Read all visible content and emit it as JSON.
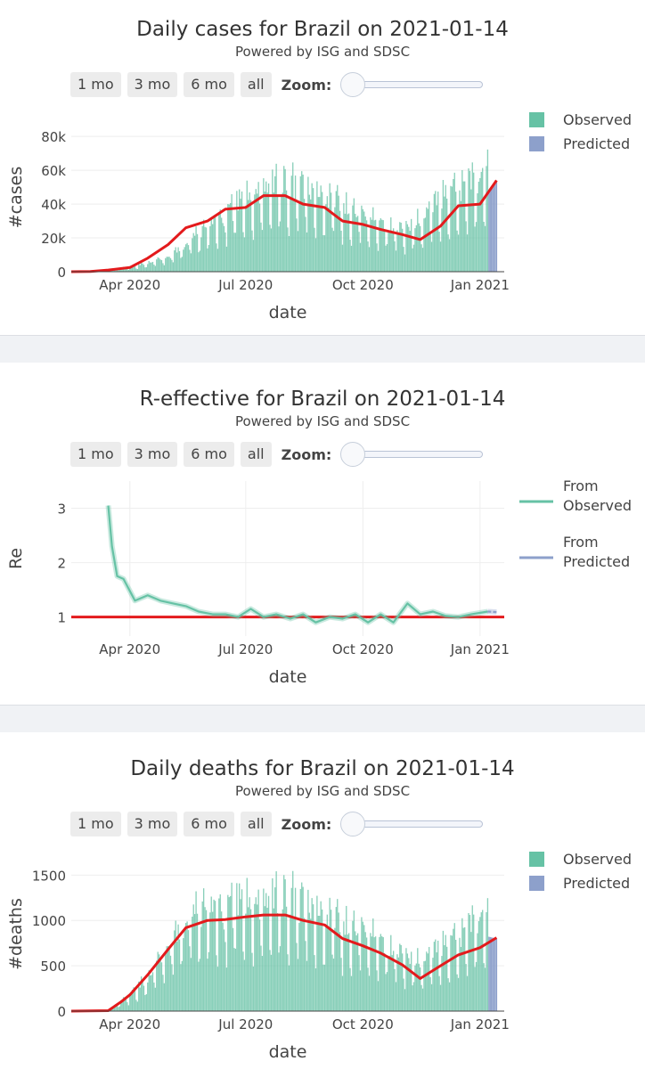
{
  "controls": {
    "buttons": [
      "1 mo",
      "3 mo",
      "6 mo",
      "all"
    ],
    "zoom_label": "Zoom:"
  },
  "colors": {
    "observed": "#66c2a5",
    "predicted": "#8da0cb",
    "trend": "#e31a1c"
  },
  "chart_data": [
    {
      "type": "bar",
      "title": "Daily cases for Brazil on 2021-01-14",
      "subtitle": "Powered by ISG and SDSC",
      "xlabel": "date",
      "ylabel": "#cases",
      "xlim": [
        "2020-02-15",
        "2021-01-20"
      ],
      "ylim": [
        0,
        88000
      ],
      "yticks": [
        0,
        20000,
        40000,
        60000,
        80000
      ],
      "ytick_labels": [
        "0",
        "20k",
        "40k",
        "60k",
        "80k"
      ],
      "xticks": [
        "2020-04-01",
        "2020-07-01",
        "2020-10-01",
        "2021-01-01"
      ],
      "xtick_labels": [
        "Apr 2020",
        "Jul 2020",
        "Oct 2020",
        "Jan 2021"
      ],
      "legend": {
        "position": "top-right",
        "entries": [
          "Observed",
          "Predicted"
        ]
      },
      "observed_bars": {
        "name": "Observed",
        "x": [
          "2020-03-01",
          "2020-03-15",
          "2020-04-01",
          "2020-04-15",
          "2020-05-01",
          "2020-05-15",
          "2020-06-01",
          "2020-06-15",
          "2020-07-01",
          "2020-07-15",
          "2020-08-01",
          "2020-08-15",
          "2020-09-01",
          "2020-09-15",
          "2020-10-01",
          "2020-10-15",
          "2020-11-01",
          "2020-11-15",
          "2020-12-01",
          "2020-12-15",
          "2021-01-01",
          "2021-01-07"
        ],
        "values": [
          100,
          800,
          2500,
          5000,
          8000,
          15000,
          25000,
          32000,
          40000,
          45000,
          48000,
          44000,
          40000,
          35000,
          30000,
          26000,
          22000,
          28000,
          40000,
          45000,
          48000,
          58000
        ]
      },
      "predicted_bars": {
        "name": "Predicted",
        "x": [
          "2021-01-08",
          "2021-01-14"
        ],
        "values": [
          48000,
          53000
        ]
      },
      "trend": {
        "x": [
          "2020-02-15",
          "2020-03-01",
          "2020-03-15",
          "2020-04-01",
          "2020-04-15",
          "2020-05-01",
          "2020-05-15",
          "2020-06-01",
          "2020-06-15",
          "2020-07-01",
          "2020-07-15",
          "2020-08-01",
          "2020-08-15",
          "2020-09-01",
          "2020-09-15",
          "2020-10-01",
          "2020-10-15",
          "2020-11-01",
          "2020-11-15",
          "2020-12-01",
          "2020-12-15",
          "2021-01-01",
          "2021-01-14"
        ],
        "values": [
          0,
          100,
          1000,
          2500,
          8000,
          16000,
          26000,
          30000,
          37000,
          38000,
          45000,
          45000,
          40000,
          38000,
          30000,
          28000,
          25000,
          22000,
          19000,
          27000,
          39000,
          40000,
          54000
        ]
      }
    },
    {
      "type": "line",
      "title": "R-effective for Brazil on 2021-01-14",
      "subtitle": "Powered by ISG and SDSC",
      "xlabel": "date",
      "ylabel": "Re",
      "xlim": [
        "2020-02-15",
        "2021-01-20"
      ],
      "ylim": [
        0.65,
        3.5
      ],
      "yticks": [
        1,
        2,
        3
      ],
      "ytick_labels": [
        "1",
        "2",
        "3"
      ],
      "xticks": [
        "2020-04-01",
        "2020-07-01",
        "2020-10-01",
        "2021-01-01"
      ],
      "xtick_labels": [
        "Apr 2020",
        "Jul 2020",
        "Oct 2020",
        "Jan 2021"
      ],
      "reference_line": 1,
      "legend": {
        "position": "top-right",
        "entries": [
          "From\nObserved",
          "From\nPredicted"
        ]
      },
      "series": [
        {
          "name": "From Observed",
          "x": [
            "2020-03-15",
            "2020-03-18",
            "2020-03-22",
            "2020-03-27",
            "2020-04-05",
            "2020-04-15",
            "2020-04-25",
            "2020-05-05",
            "2020-05-15",
            "2020-05-25",
            "2020-06-05",
            "2020-06-15",
            "2020-06-25",
            "2020-07-05",
            "2020-07-15",
            "2020-07-25",
            "2020-08-05",
            "2020-08-15",
            "2020-08-25",
            "2020-09-05",
            "2020-09-15",
            "2020-09-25",
            "2020-10-05",
            "2020-10-15",
            "2020-10-25",
            "2020-11-05",
            "2020-11-15",
            "2020-11-25",
            "2020-12-05",
            "2020-12-15",
            "2020-12-25",
            "2021-01-07"
          ],
          "values": [
            3.05,
            2.3,
            1.75,
            1.7,
            1.3,
            1.4,
            1.3,
            1.25,
            1.2,
            1.1,
            1.05,
            1.05,
            1.0,
            1.15,
            1.0,
            1.05,
            0.97,
            1.05,
            0.9,
            1.0,
            0.97,
            1.05,
            0.9,
            1.05,
            0.9,
            1.25,
            1.05,
            1.1,
            1.02,
            1.0,
            1.05,
            1.1
          ]
        },
        {
          "name": "From Predicted",
          "x": [
            "2021-01-07",
            "2021-01-14"
          ],
          "values": [
            1.1,
            1.09
          ]
        }
      ]
    },
    {
      "type": "bar",
      "title": "Daily deaths for Brazil on 2021-01-14",
      "subtitle": "Powered by ISG and SDSC",
      "xlabel": "date",
      "ylabel": "#deaths",
      "xlim": [
        "2020-02-15",
        "2021-01-20"
      ],
      "ylim": [
        0,
        1700
      ],
      "yticks": [
        0,
        500,
        1000,
        1500
      ],
      "ytick_labels": [
        "0",
        "500",
        "1000",
        "1500"
      ],
      "xticks": [
        "2020-04-01",
        "2020-07-01",
        "2020-10-01",
        "2021-01-01"
      ],
      "xtick_labels": [
        "Apr 2020",
        "Jul 2020",
        "Oct 2020",
        "Jan 2021"
      ],
      "legend": {
        "position": "top-right",
        "entries": [
          "Observed",
          "Predicted"
        ]
      },
      "observed_bars": {
        "name": "Observed",
        "x": [
          "2020-03-15",
          "2020-04-01",
          "2020-04-15",
          "2020-05-01",
          "2020-05-15",
          "2020-06-01",
          "2020-06-15",
          "2020-07-01",
          "2020-07-15",
          "2020-08-01",
          "2020-08-15",
          "2020-09-01",
          "2020-09-15",
          "2020-10-01",
          "2020-10-15",
          "2020-11-01",
          "2020-11-15",
          "2020-12-01",
          "2020-12-15",
          "2021-01-01",
          "2021-01-07"
        ],
        "values": [
          5,
          150,
          350,
          650,
          900,
          1050,
          1050,
          1100,
          1100,
          1150,
          1050,
          950,
          850,
          800,
          700,
          550,
          500,
          650,
          750,
          900,
          1000
        ]
      },
      "predicted_bars": {
        "name": "Predicted",
        "x": [
          "2021-01-08",
          "2021-01-14"
        ],
        "values": [
          820,
          800
        ]
      },
      "trend": {
        "x": [
          "2020-02-15",
          "2020-03-15",
          "2020-03-25",
          "2020-04-01",
          "2020-04-15",
          "2020-05-01",
          "2020-05-15",
          "2020-06-01",
          "2020-06-15",
          "2020-07-01",
          "2020-07-15",
          "2020-08-01",
          "2020-08-15",
          "2020-09-01",
          "2020-09-15",
          "2020-10-01",
          "2020-10-15",
          "2020-11-01",
          "2020-11-15",
          "2020-12-01",
          "2020-12-15",
          "2021-01-01",
          "2021-01-14"
        ],
        "values": [
          0,
          5,
          100,
          180,
          400,
          680,
          920,
          1000,
          1010,
          1040,
          1060,
          1060,
          1000,
          950,
          800,
          720,
          640,
          510,
          360,
          500,
          620,
          700,
          810
        ]
      }
    }
  ]
}
